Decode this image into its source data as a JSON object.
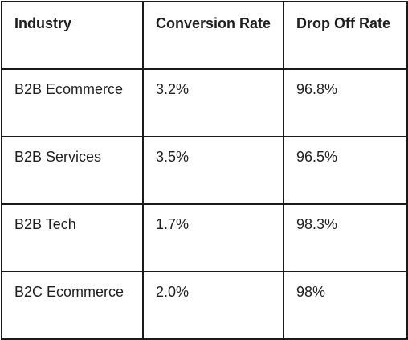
{
  "table": {
    "headers": [
      "Industry",
      "Conversion Rate",
      "Drop Off Rate"
    ],
    "rows": [
      [
        "B2B Ecommerce",
        "3.2%",
        "96.8%"
      ],
      [
        "B2B Services",
        "3.5%",
        "96.5%"
      ],
      [
        "B2B Tech",
        "1.7%",
        "98.3%"
      ],
      [
        "B2C Ecommerce",
        "2.0%",
        "98%"
      ]
    ]
  }
}
